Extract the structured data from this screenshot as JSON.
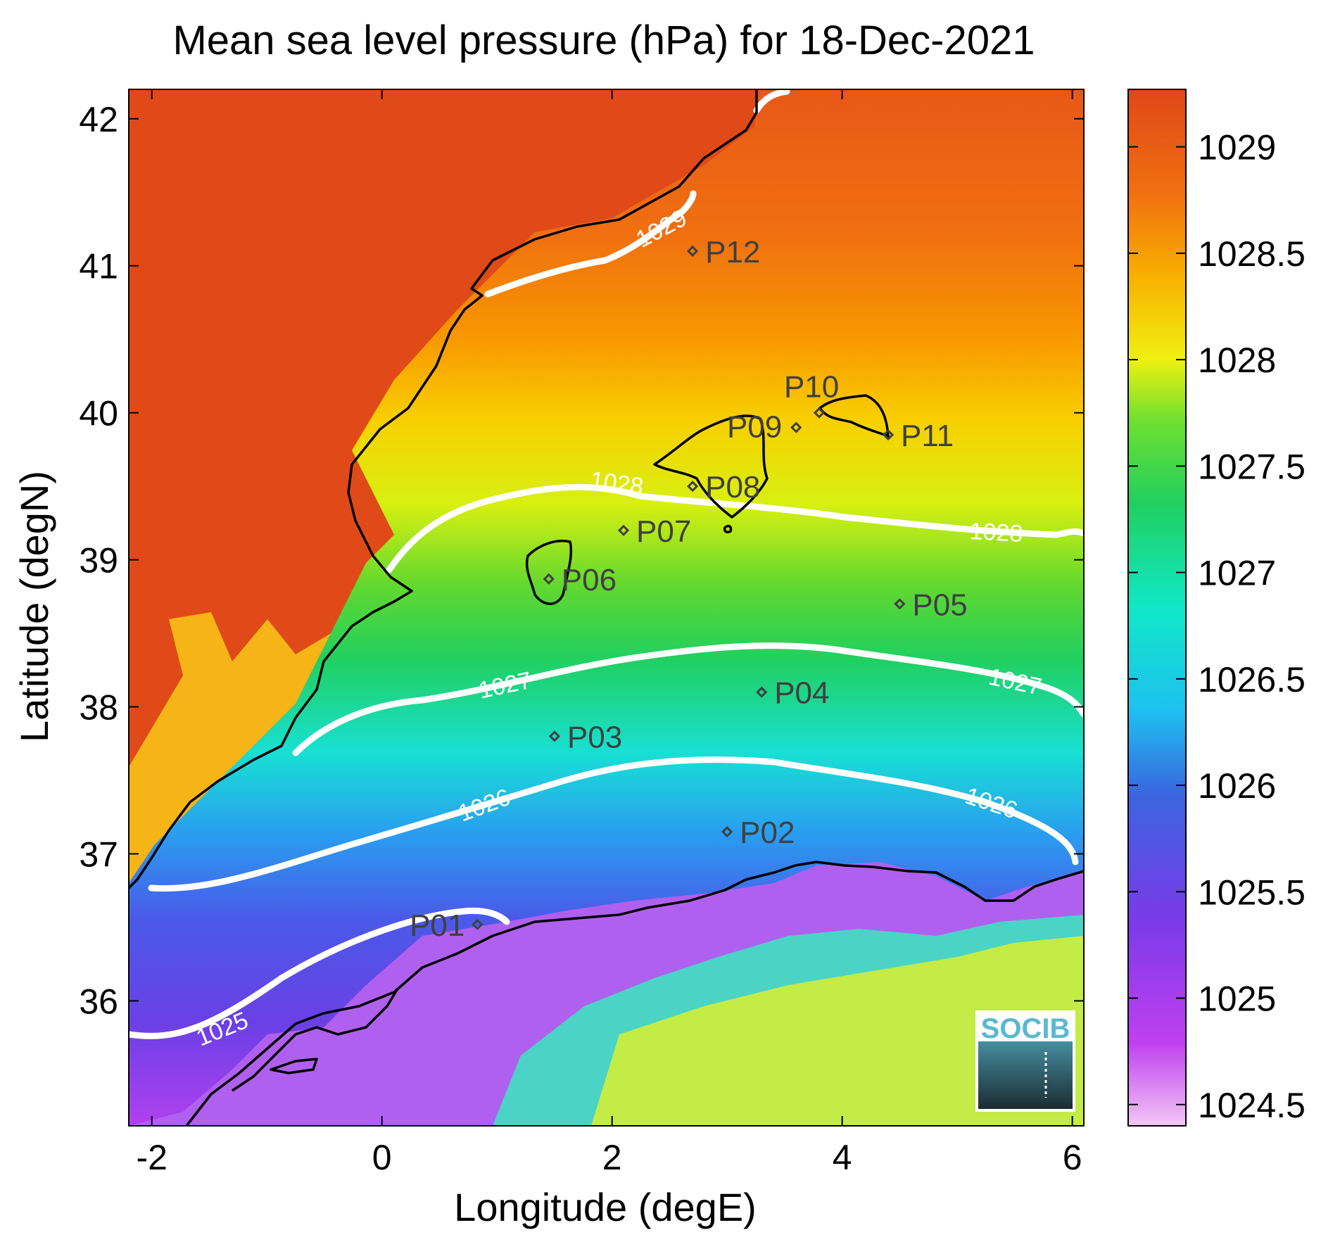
{
  "title": "Mean sea level pressure (hPa) for 18-Dec-2021",
  "xlabel": "Longitude (degE)",
  "ylabel": "Latitude (degN)",
  "xlim": [
    -2.2,
    6.1
  ],
  "ylim": [
    35.15,
    42.2
  ],
  "xticks": [
    "-2",
    "0",
    "2",
    "4",
    "6"
  ],
  "xtick_values": [
    -2,
    0,
    2,
    4,
    6
  ],
  "yticks": [
    "36",
    "37",
    "38",
    "39",
    "40",
    "41",
    "42"
  ],
  "ytick_values": [
    36,
    37,
    38,
    39,
    40,
    41,
    42
  ],
  "colorbar": {
    "range": [
      1024.4,
      1029.27
    ],
    "ticks": [
      "1024.5",
      "1025",
      "1025.5",
      "1026",
      "1026.5",
      "1027",
      "1027.5",
      "1028",
      "1028.5",
      "1029"
    ],
    "tick_values": [
      1024.5,
      1025,
      1025.5,
      1026,
      1026.5,
      1027,
      1027.5,
      1028,
      1028.5,
      1029
    ],
    "colormap": [
      "#f2c7f5",
      "#c040f0",
      "#7a3ae8",
      "#3a66e0",
      "#1ec0f0",
      "#10e8c8",
      "#20d060",
      "#6ee030",
      "#f0f010",
      "#f8b000",
      "#f07010",
      "#e04818"
    ]
  },
  "contour_labels": [
    "1025",
    "1026",
    "1027",
    "1028",
    "1029"
  ],
  "stations": [
    {
      "name": "P01",
      "lon": 0.83,
      "lat": 36.52
    },
    {
      "name": "P02",
      "lon": 3.0,
      "lat": 37.15
    },
    {
      "name": "P03",
      "lon": 1.5,
      "lat": 37.8
    },
    {
      "name": "P04",
      "lon": 3.3,
      "lat": 38.1
    },
    {
      "name": "P05",
      "lon": 4.5,
      "lat": 38.7
    },
    {
      "name": "P06",
      "lon": 1.45,
      "lat": 38.87
    },
    {
      "name": "P07",
      "lon": 2.1,
      "lat": 39.2
    },
    {
      "name": "P08",
      "lon": 2.7,
      "lat": 39.5
    },
    {
      "name": "P09",
      "lon": 3.6,
      "lat": 39.9
    },
    {
      "name": "P10",
      "lon": 3.8,
      "lat": 40.0
    },
    {
      "name": "P11",
      "lon": 4.4,
      "lat": 39.85
    },
    {
      "name": "P12",
      "lon": 2.7,
      "lat": 41.1
    }
  ],
  "logo_text": "SOCIB",
  "colors": {
    "contour": "#ffffff",
    "coast": "#000000",
    "station": "#404040",
    "logo": "#5ab8d0"
  }
}
